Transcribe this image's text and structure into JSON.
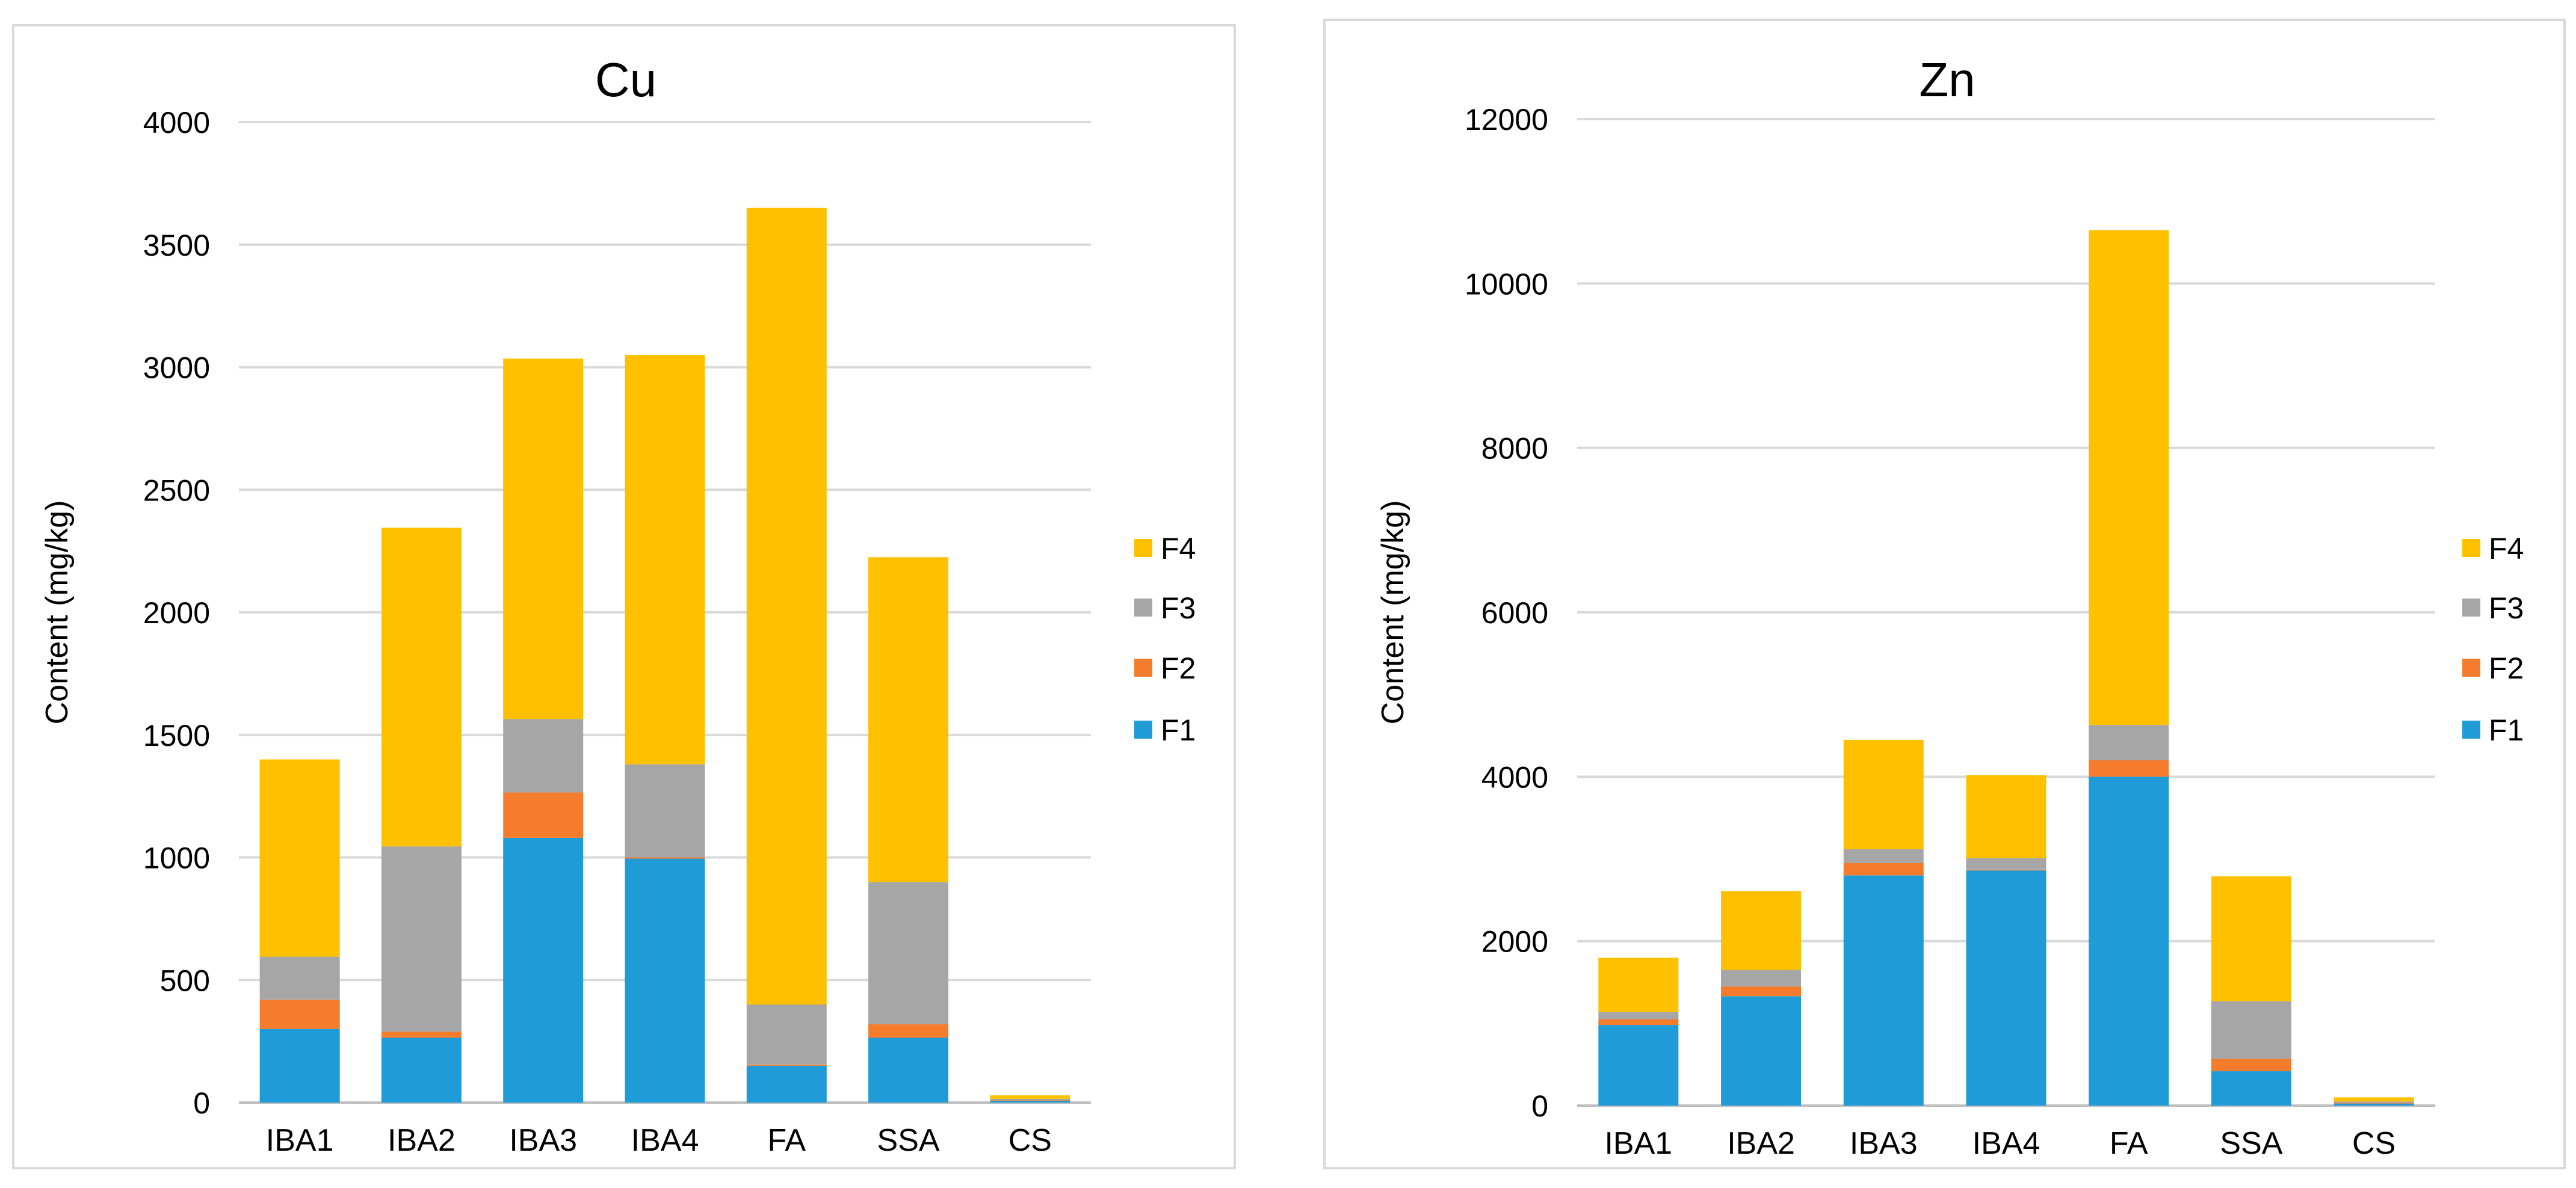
{
  "chart_data": [
    {
      "type": "bar",
      "stacked": true,
      "title": "Cu",
      "xlabel": "",
      "ylabel": "Content (mg/kg)",
      "ylim": [
        0,
        4000
      ],
      "yticks": [
        0,
        500,
        1000,
        1500,
        2000,
        2500,
        3000,
        3500,
        4000
      ],
      "categories": [
        "IBA1",
        "IBA2",
        "IBA3",
        "IBA4",
        "FA",
        "SSA",
        "CS"
      ],
      "grid": true,
      "legend_position": "right",
      "series": [
        {
          "name": "F1",
          "color": "#1F9BD7",
          "values": [
            300,
            265,
            1080,
            995,
            150,
            265,
            8
          ]
        },
        {
          "name": "F2",
          "color": "#F47C2C",
          "values": [
            120,
            25,
            185,
            5,
            5,
            55,
            2
          ]
        },
        {
          "name": "F3",
          "color": "#A6A6A6",
          "values": [
            175,
            755,
            300,
            380,
            245,
            580,
            5
          ]
        },
        {
          "name": "F4",
          "color": "#FFC000",
          "values": [
            805,
            1300,
            1470,
            1670,
            3250,
            1325,
            15
          ]
        }
      ]
    },
    {
      "type": "bar",
      "stacked": true,
      "title": "Zn",
      "xlabel": "",
      "ylabel": "Content (mg/kg)",
      "ylim": [
        0,
        12000
      ],
      "yticks": [
        0,
        2000,
        4000,
        6000,
        8000,
        10000,
        12000
      ],
      "categories": [
        "IBA1",
        "IBA2",
        "IBA3",
        "IBA4",
        "FA",
        "SSA",
        "CS"
      ],
      "grid": true,
      "legend_position": "right",
      "series": [
        {
          "name": "F1",
          "color": "#1F9BD7",
          "values": [
            980,
            1330,
            2800,
            2860,
            4000,
            420,
            25
          ]
        },
        {
          "name": "F2",
          "color": "#F47C2C",
          "values": [
            70,
            120,
            150,
            10,
            200,
            150,
            10
          ]
        },
        {
          "name": "F3",
          "color": "#A6A6A6",
          "values": [
            90,
            200,
            170,
            140,
            430,
            700,
            15
          ]
        },
        {
          "name": "F4",
          "color": "#FFC000",
          "values": [
            660,
            960,
            1330,
            1010,
            6020,
            1520,
            50
          ]
        }
      ]
    }
  ]
}
